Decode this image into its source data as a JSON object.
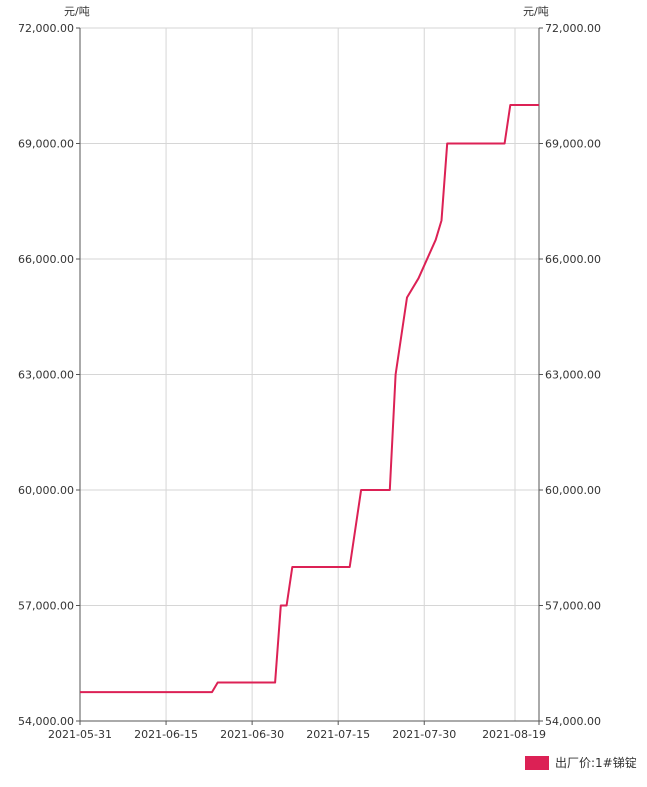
{
  "chart_data": {
    "type": "line",
    "unit_left": "元/吨",
    "unit_right": "元/吨",
    "ylim": [
      54000,
      72000
    ],
    "y_ticks": [
      "72,000.00",
      "69,000.00",
      "66,000.00",
      "63,000.00",
      "60,000.00",
      "57,000.00",
      "54,000.00"
    ],
    "y_tick_values": [
      72000,
      69000,
      66000,
      63000,
      60000,
      57000,
      54000
    ],
    "x_ticks": [
      "2021-05-31",
      "2021-06-15",
      "2021-06-30",
      "2021-07-15",
      "2021-07-30",
      "2021-08-19"
    ],
    "x_range": [
      "2021-05-31",
      "2021-08-19"
    ],
    "grid": true,
    "legend_position": "bottom-right",
    "series": [
      {
        "name": "出厂价:1#锑锭",
        "color": "#dc2155",
        "points": [
          [
            "2021-05-31",
            54750
          ],
          [
            "2021-06-23",
            54750
          ],
          [
            "2021-06-24",
            55000
          ],
          [
            "2021-07-04",
            55000
          ],
          [
            "2021-07-05",
            57000
          ],
          [
            "2021-07-06",
            57000
          ],
          [
            "2021-07-07",
            58000
          ],
          [
            "2021-07-17",
            58000
          ],
          [
            "2021-07-19",
            60000
          ],
          [
            "2021-07-24",
            60000
          ],
          [
            "2021-07-25",
            63000
          ],
          [
            "2021-07-27",
            65000
          ],
          [
            "2021-07-29",
            65500
          ],
          [
            "2021-08-01",
            66500
          ],
          [
            "2021-08-02",
            67000
          ],
          [
            "2021-08-03",
            69000
          ],
          [
            "2021-08-13",
            69000
          ],
          [
            "2021-08-14",
            70000
          ],
          [
            "2021-08-19",
            70000
          ]
        ]
      }
    ]
  },
  "legend": {
    "label": "出厂价:1#锑锭",
    "color": "#dc2155"
  }
}
